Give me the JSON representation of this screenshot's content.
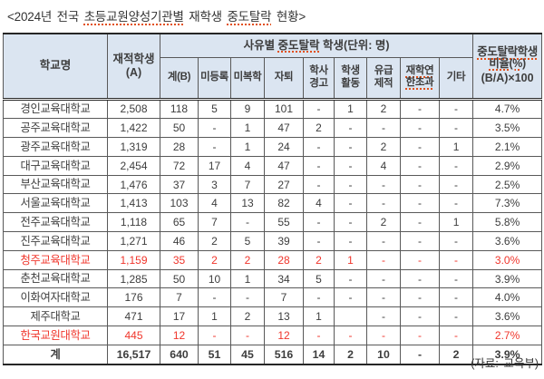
{
  "title": {
    "part1": "<2024년 전국 ",
    "part2": "초등교원양성기관별",
    "part3": " 재학생 ",
    "part4": "중도탈락",
    "part5": " 현황>"
  },
  "source": "(자료: 교육부)",
  "colors": {
    "header_bg": "#dbe5f1",
    "red_text": "#f0352b",
    "squiggle": "#e2501c"
  },
  "table": {
    "header": {
      "school": "학교명",
      "enrolled": "재적학생\n(A)",
      "reason_group_prefix": "사유별 ",
      "reason_group_marked": "중도탈락",
      "reason_group_suffix": " 학생(단위: 명)",
      "total_b": "계(B)",
      "not_registered": "미등록",
      "not_returning": "미복학",
      "withdrawal": "자퇴",
      "academic_warning": "학사\n경고",
      "student_activity": "학생\n활동",
      "flunk_expulsion": "유급\n제적",
      "enrollment_limit": "재학연한초과",
      "etc": "기타",
      "ratio_line1": "중도탈락학생비율(%)",
      "ratio_line2": "(B/A)×100"
    },
    "rows": [
      {
        "name": "경인교육대학교",
        "cells": [
          "2,508",
          "118",
          "5",
          "9",
          "101",
          "-",
          "1",
          "2",
          "-",
          "-",
          "4.7%"
        ]
      },
      {
        "name": "공주교육대학교",
        "cells": [
          "1,422",
          "50",
          "-",
          "1",
          "47",
          "2",
          "-",
          "-",
          "-",
          "-",
          "3.5%"
        ]
      },
      {
        "name": "광주교육대학교",
        "cells": [
          "1,319",
          "28",
          "-",
          "1",
          "24",
          "-",
          "-",
          "2",
          "-",
          "1",
          "2.1%"
        ]
      },
      {
        "name": "대구교육대학교",
        "cells": [
          "2,454",
          "72",
          "17",
          "4",
          "47",
          "-",
          "-",
          "4",
          "-",
          "-",
          "2.9%"
        ]
      },
      {
        "name": "부산교육대학교",
        "cells": [
          "1,476",
          "37",
          "3",
          "7",
          "27",
          "-",
          "-",
          "-",
          "-",
          "-",
          "2.5%"
        ]
      },
      {
        "name": "서울교육대학교",
        "cells": [
          "1,413",
          "103",
          "4",
          "13",
          "82",
          "4",
          "-",
          "-",
          "-",
          "-",
          "7.3%"
        ]
      },
      {
        "name": "전주교육대학교",
        "cells": [
          "1,118",
          "65",
          "7",
          "-",
          "55",
          "-",
          "-",
          "2",
          "-",
          "1",
          "5.8%"
        ]
      },
      {
        "name": "진주교육대학교",
        "cells": [
          "1,271",
          "46",
          "2",
          "5",
          "39",
          "-",
          "-",
          "-",
          "-",
          "-",
          "3.6%"
        ]
      },
      {
        "name": "청주교육대학교",
        "cells": [
          "1,159",
          "35",
          "2",
          "2",
          "28",
          "2",
          "1",
          "-",
          "-",
          "-",
          "3.0%"
        ],
        "highlight": true
      },
      {
        "name": "춘천교육대학교",
        "cells": [
          "1,285",
          "50",
          "10",
          "1",
          "34",
          "5",
          "-",
          "-",
          "-",
          "-",
          "3.9%"
        ]
      },
      {
        "name": "이화여자대학교",
        "cells": [
          "176",
          "7",
          "-",
          "-",
          "7",
          "-",
          "-",
          "-",
          "-",
          "-",
          "4.0%"
        ]
      },
      {
        "name": "제주대학교",
        "cells": [
          "471",
          "17",
          "1",
          "2",
          "13",
          "1",
          "",
          "-",
          "-",
          "-",
          "3.6%"
        ]
      },
      {
        "name": "한국교원대학교",
        "cells": [
          "445",
          "12",
          "-",
          "-",
          "12",
          "-",
          "-",
          "-",
          "-",
          "-",
          "2.7%"
        ],
        "highlight": true
      },
      {
        "name": "계",
        "cells": [
          "16,517",
          "640",
          "51",
          "45",
          "516",
          "14",
          "2",
          "10",
          "-",
          "2",
          "3.9%"
        ],
        "total": true
      }
    ]
  }
}
